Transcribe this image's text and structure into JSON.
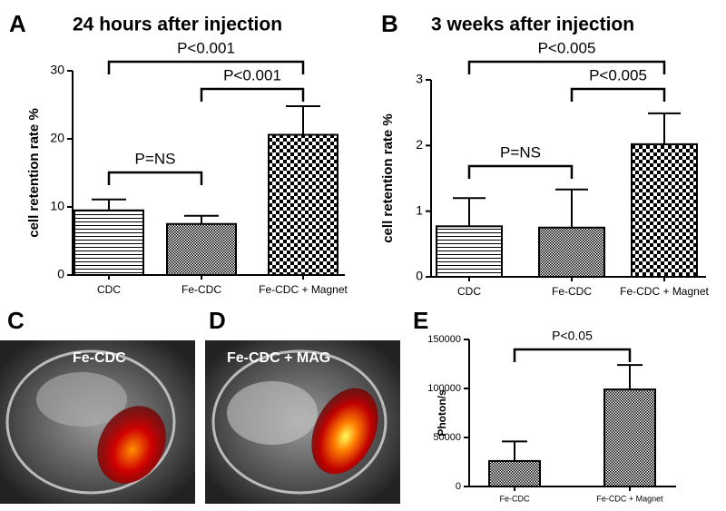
{
  "chart_data": [
    {
      "type": "bar",
      "panel": "A",
      "title": "24 hours after injection",
      "ylabel": "cell retention rate %",
      "categories": [
        "CDC",
        "Fe-CDC",
        "Fe-CDC + Magnet"
      ],
      "values": [
        9.5,
        7.5,
        20.6
      ],
      "errors": [
        1.6,
        1.2,
        4.2
      ],
      "ylim": [
        0,
        30
      ],
      "yticks": [
        0,
        10,
        20,
        30
      ],
      "annotations": [
        {
          "text": "P=NS",
          "between": [
            "CDC",
            "Fe-CDC"
          ]
        },
        {
          "text": "P<0.001",
          "between": [
            "Fe-CDC",
            "Fe-CDC + Magnet"
          ]
        },
        {
          "text": "P<0.001",
          "between": [
            "CDC",
            "Fe-CDC + Magnet"
          ]
        }
      ]
    },
    {
      "type": "bar",
      "panel": "B",
      "title": "3 weeks after injection",
      "ylabel": "cell retention rate %",
      "categories": [
        "CDC",
        "Fe-CDC",
        "Fe-CDC + Magnet"
      ],
      "values": [
        0.77,
        0.75,
        2.02
      ],
      "errors": [
        0.43,
        0.58,
        0.47
      ],
      "ylim": [
        0,
        3
      ],
      "yticks": [
        0,
        1,
        2,
        3
      ],
      "annotations": [
        {
          "text": "P=NS",
          "between": [
            "CDC",
            "Fe-CDC"
          ]
        },
        {
          "text": "P<0.005",
          "between": [
            "Fe-CDC",
            "Fe-CDC + Magnet"
          ]
        },
        {
          "text": "P<0.005",
          "between": [
            "CDC",
            "Fe-CDC + Magnet"
          ]
        }
      ]
    },
    {
      "type": "bar",
      "panel": "E",
      "ylabel": "Photon/s",
      "categories": [
        "Fe-CDC",
        "Fe-CDC + Magnet"
      ],
      "values": [
        26000,
        99000
      ],
      "errors": [
        20000,
        25000
      ],
      "ylim": [
        0,
        150000
      ],
      "yticks": [
        0,
        50000,
        100000,
        150000
      ],
      "annotations": [
        {
          "text": "P<0.05",
          "between": [
            "Fe-CDC",
            "Fe-CDC + Magnet"
          ]
        }
      ]
    }
  ],
  "images": [
    {
      "panel": "C",
      "label": "Fe-CDC"
    },
    {
      "panel": "D",
      "label": "Fe-CDC + MAG"
    }
  ]
}
